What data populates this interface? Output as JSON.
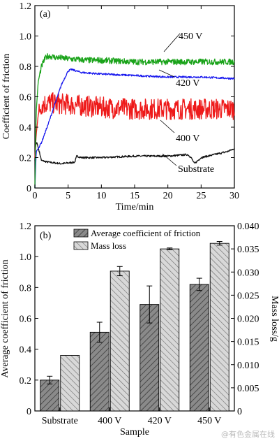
{
  "chart_data": [
    {
      "panel": "(a)",
      "type": "line",
      "xlabel": "Time/min",
      "ylabel": "Coefficient of friction",
      "xlim": [
        0,
        30
      ],
      "ylim": [
        0,
        1.2
      ],
      "xticks": [
        0,
        5,
        10,
        15,
        20,
        25,
        30
      ],
      "yticks": [
        0,
        0.2,
        0.4,
        0.6,
        0.8,
        1.0,
        1.2
      ],
      "xtick_labels": [
        "0",
        "5",
        "10",
        "15",
        "20",
        "25",
        "30"
      ],
      "ytick_labels": [
        "0",
        "0.2",
        "0.4",
        "0.6",
        "0.8",
        "1.0",
        "1.2"
      ],
      "series": [
        {
          "name": "450 V",
          "color": "#1aa31a",
          "noise": 0.02,
          "x": [
            0,
            0.2,
            0.5,
            1,
            1.5,
            2,
            3,
            5,
            8,
            10,
            15,
            20,
            25,
            30
          ],
          "y": [
            0,
            0.5,
            0.7,
            0.8,
            0.85,
            0.87,
            0.86,
            0.85,
            0.84,
            0.84,
            0.83,
            0.83,
            0.83,
            0.83
          ]
        },
        {
          "name": "420 V",
          "color": "#1a1aee",
          "noise": 0.006,
          "x": [
            0,
            0.2,
            0.5,
            1,
            2,
            3,
            4,
            5,
            5.5,
            7,
            10,
            15,
            20,
            25,
            30
          ],
          "y": [
            0,
            0.24,
            0.26,
            0.3,
            0.42,
            0.55,
            0.68,
            0.77,
            0.78,
            0.76,
            0.75,
            0.74,
            0.73,
            0.73,
            0.72
          ]
        },
        {
          "name": "400 V",
          "color": "#ee1a1a",
          "noise": 0.07,
          "x": [
            0,
            0.2,
            0.5,
            1,
            2,
            5,
            10,
            15,
            20,
            25,
            30
          ],
          "y": [
            0.2,
            0.35,
            0.48,
            0.55,
            0.56,
            0.55,
            0.53,
            0.52,
            0.52,
            0.52,
            0.52
          ]
        },
        {
          "name": "Substrate",
          "color": "#111111",
          "noise": 0.006,
          "x": [
            0,
            0.1,
            0.3,
            0.6,
            1,
            2,
            4,
            6,
            6.3,
            7,
            10,
            15,
            20,
            23,
            23.5,
            24,
            25,
            27,
            29,
            30
          ],
          "y": [
            0.18,
            0.28,
            0.3,
            0.25,
            0.18,
            0.17,
            0.16,
            0.17,
            0.21,
            0.2,
            0.2,
            0.21,
            0.21,
            0.22,
            0.2,
            0.16,
            0.2,
            0.22,
            0.24,
            0.26
          ]
        }
      ],
      "annotations": [
        "450 V",
        "420 V",
        "400 V",
        "Substrate"
      ]
    },
    {
      "panel": "(b)",
      "type": "bar",
      "xlabel": "Sample",
      "ylabel": "Average coefficient of friction",
      "y2label": "Mass loss/g",
      "categories": [
        "Substrate",
        "400 V",
        "420 V",
        "450 V"
      ],
      "ylim": [
        0,
        1.2
      ],
      "y2lim": [
        0,
        0.04
      ],
      "yticks": [
        0,
        0.2,
        0.4,
        0.6,
        0.8,
        1.0,
        1.2
      ],
      "y2ticks": [
        0,
        0.005,
        0.01,
        0.015,
        0.02,
        0.025,
        0.03,
        0.035,
        0.04
      ],
      "ytick_labels": [
        "0",
        "0.2",
        "0.4",
        "0.6",
        "0.8",
        "1.0",
        "1.2"
      ],
      "y2tick_labels": [
        "0",
        "0.005",
        "0.010",
        "0.015",
        "0.020",
        "0.025",
        "0.030",
        "0.035",
        "0.040"
      ],
      "legend_position": "top",
      "series": [
        {
          "name": "Average coefficient of friction",
          "axis": "left",
          "fill": "#8a8a8a",
          "values": [
            0.2,
            0.51,
            0.69,
            0.82
          ],
          "errors": [
            0.025,
            0.065,
            0.12,
            0.04
          ]
        },
        {
          "name": "Mass loss",
          "axis": "right",
          "fill": "#d6d6d6",
          "values": [
            0.012,
            0.0302,
            0.035,
            0.0362
          ],
          "errors": [
            0.0,
            0.001,
            0.0002,
            0.0004
          ]
        }
      ]
    }
  ],
  "watermark": "@有色金属在线"
}
